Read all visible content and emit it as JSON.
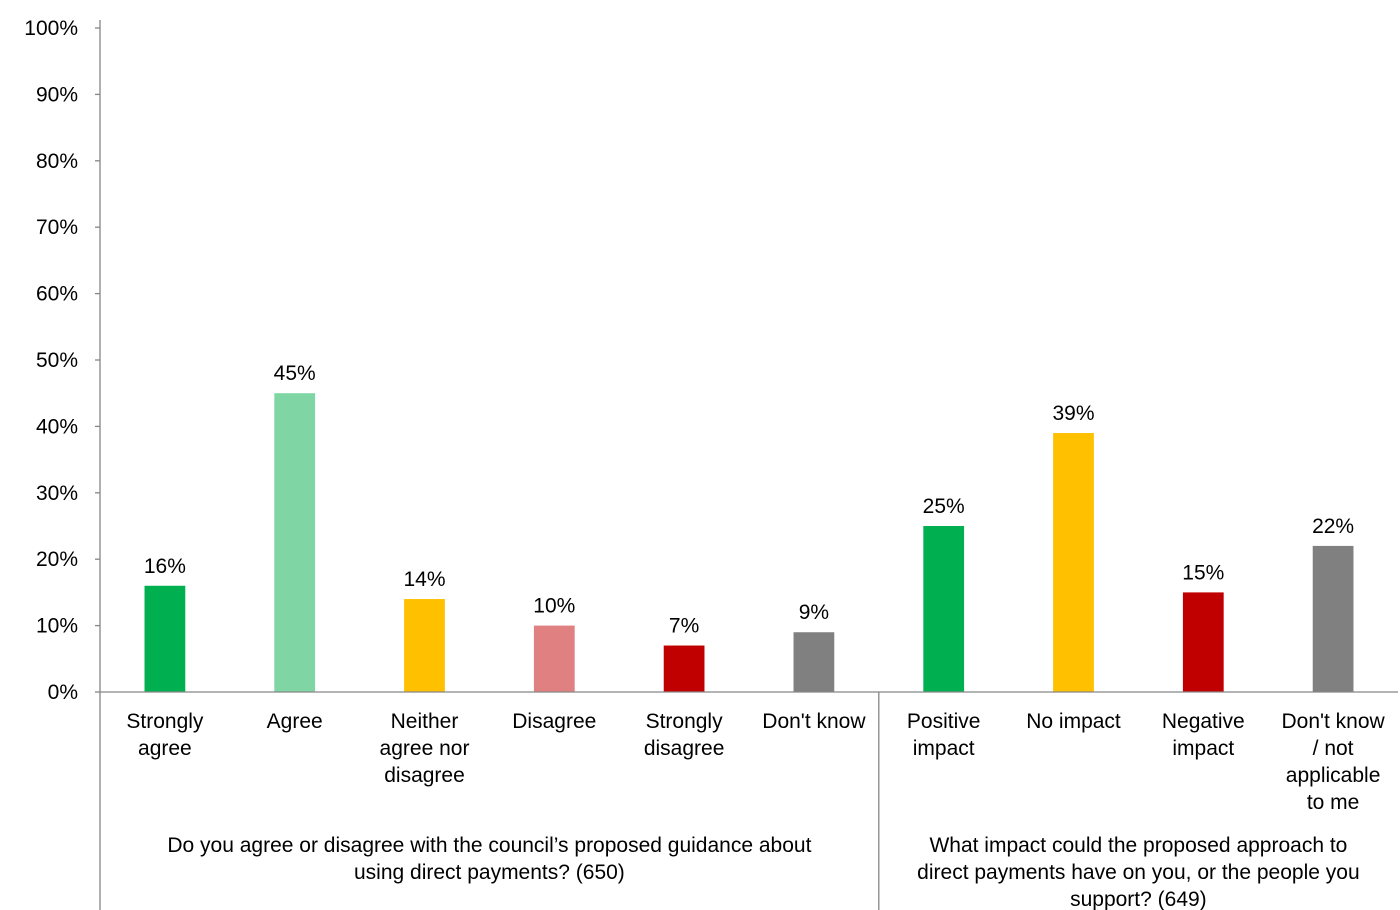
{
  "chart_data": {
    "type": "bar",
    "ylim": [
      0,
      100
    ],
    "yticks": [
      {
        "value": 0,
        "label": "0%"
      },
      {
        "value": 10,
        "label": "10%"
      },
      {
        "value": 20,
        "label": "20%"
      },
      {
        "value": 30,
        "label": "30%"
      },
      {
        "value": 40,
        "label": "40%"
      },
      {
        "value": 50,
        "label": "50%"
      },
      {
        "value": 60,
        "label": "60%"
      },
      {
        "value": 70,
        "label": "70%"
      },
      {
        "value": 80,
        "label": "80%"
      },
      {
        "value": 90,
        "label": "90%"
      },
      {
        "value": 100,
        "label": "100%"
      }
    ],
    "groups": [
      {
        "label": "Do you agree or disagree with the council’s proposed guidance about using direct payments? (650)",
        "label_lines": [
          "Do you agree or disagree with the council’s proposed guidance about",
          "using direct payments? (650)"
        ],
        "bars": [
          {
            "category": "Strongly agree",
            "lines": [
              "Strongly",
              "agree"
            ],
            "value": 16,
            "value_label": "16%",
            "color": "#00b050"
          },
          {
            "category": "Agree",
            "lines": [
              "Agree"
            ],
            "value": 45,
            "value_label": "45%",
            "color": "#7fd6a4"
          },
          {
            "category": "Neither agree nor disagree",
            "lines": [
              "Neither",
              "agree nor",
              "disagree"
            ],
            "value": 14,
            "value_label": "14%",
            "color": "#ffc000"
          },
          {
            "category": "Disagree",
            "lines": [
              "Disagree"
            ],
            "value": 10,
            "value_label": "10%",
            "color": "#e08080"
          },
          {
            "category": "Strongly disagree",
            "lines": [
              "Strongly",
              "disagree"
            ],
            "value": 7,
            "value_label": "7%",
            "color": "#c00000"
          },
          {
            "category": "Don't know",
            "lines": [
              "Don't know"
            ],
            "value": 9,
            "value_label": "9%",
            "color": "#808080"
          }
        ]
      },
      {
        "label": "What impact could the proposed approach to direct payments have on you, or the people you support? (649)",
        "label_lines": [
          "What impact could the proposed approach to",
          "direct payments have on you, or the people you",
          "support? (649)"
        ],
        "bars": [
          {
            "category": "Positive impact",
            "lines": [
              "Positive",
              "impact"
            ],
            "value": 25,
            "value_label": "25%",
            "color": "#00b050"
          },
          {
            "category": "No impact",
            "lines": [
              "No impact"
            ],
            "value": 39,
            "value_label": "39%",
            "color": "#ffc000"
          },
          {
            "category": "Negative impact",
            "lines": [
              "Negative",
              "impact"
            ],
            "value": 15,
            "value_label": "15%",
            "color": "#c00000"
          },
          {
            "category": "Don't know / not applicable to me",
            "lines": [
              "Don't know",
              "/ not",
              "applicable",
              "to me"
            ],
            "value": 22,
            "value_label": "22%",
            "color": "#808080"
          }
        ]
      }
    ],
    "grid": false,
    "legend": "none"
  }
}
